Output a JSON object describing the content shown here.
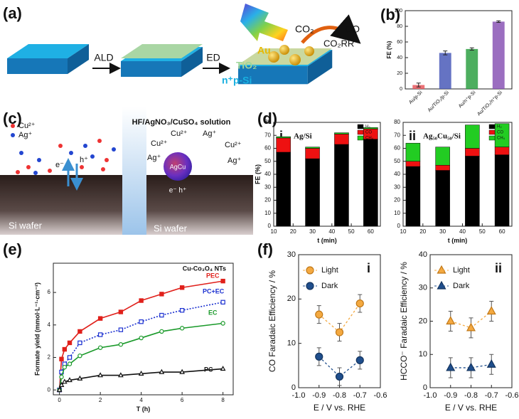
{
  "panel_labels": [
    "(a)",
    "(b)",
    "(c)",
    "(d)",
    "(e)",
    "(f)"
  ],
  "schematic_a": {
    "steps": [
      "ALD",
      "ED"
    ],
    "layers": [
      "Au",
      "TiO₂",
      "n⁺p-Si"
    ],
    "reaction": [
      "CO₂",
      "CO₂RR",
      "CO"
    ]
  },
  "schematic_c": {
    "title": "HF/AgNO₃/CuSO₄ solution",
    "legend": [
      "Cu²⁺",
      "Ag⁺"
    ],
    "carriers_left": [
      "e⁻",
      "h⁺"
    ],
    "particle": "AgCu",
    "carriers_right": "e⁻ h⁺",
    "ion_labels": [
      "Cu²⁺",
      "Cu²⁺",
      "Ag⁺",
      "Cu²⁺",
      "Ag⁺",
      "Ag⁺"
    ],
    "substrate": [
      "Si wafer",
      "Si wafer"
    ]
  },
  "chart_data": [
    {
      "type": "bar",
      "ylabel": "FE (%)",
      "categories": [
        "Au/p-Si",
        "Au/TiO₂/p-Si",
        "Au/n⁺p-Si",
        "Au/TiO₂/n⁺p-Si"
      ],
      "values": [
        5,
        46,
        51,
        86
      ],
      "errors": [
        2.5,
        2.5,
        1.5,
        1
      ],
      "colors": [
        "#e8585e",
        "#4a5bb8",
        "#2ea043",
        "#8a55b5"
      ],
      "ylim": [
        0,
        100
      ],
      "yticks": [
        0,
        20,
        40,
        60,
        80,
        100
      ]
    },
    {
      "type": "stacked_bar",
      "panel": "i",
      "title": "Ag/Si",
      "xlabel": "t (min)",
      "ylabel": "FE (%)",
      "x": [
        15,
        30,
        45,
        60
      ],
      "xlim": [
        10,
        65
      ],
      "xticks": [
        10,
        20,
        30,
        40,
        50,
        60
      ],
      "ylim": [
        0,
        80
      ],
      "yticks": [
        0,
        10,
        20,
        30,
        40,
        50,
        60,
        70,
        80
      ],
      "series": [
        {
          "name": "H₂",
          "color": "#000000",
          "values": [
            57,
            52,
            63,
            67
          ]
        },
        {
          "name": "CO",
          "color": "#ee1111",
          "values": [
            11,
            8,
            8,
            8
          ]
        },
        {
          "name": "CH₄",
          "color": "#22cc22",
          "values": [
            1,
            1,
            1,
            1
          ]
        }
      ]
    },
    {
      "type": "stacked_bar",
      "panel": "ii",
      "title": "Ag₅₀Cu₅₀/Si",
      "xlabel": "t (min)",
      "x": [
        15,
        30,
        45,
        60
      ],
      "xlim": [
        10,
        65
      ],
      "xticks": [
        10,
        20,
        30,
        40,
        50,
        60
      ],
      "ylim": [
        0,
        80
      ],
      "yticks": [
        0,
        10,
        20,
        30,
        40,
        50,
        60,
        70,
        80
      ],
      "series": [
        {
          "name": "H₂",
          "color": "#000000",
          "values": [
            46,
            43,
            54,
            55
          ]
        },
        {
          "name": "CO",
          "color": "#ee1111",
          "values": [
            4,
            4,
            6,
            6
          ]
        },
        {
          "name": "CH₄",
          "color": "#22cc22",
          "values": [
            14,
            14,
            18,
            18
          ]
        }
      ]
    },
    {
      "type": "line",
      "annotation": "Cu-Co₃O₄ NTs",
      "xlabel": "T (h)",
      "ylabel": "Formate yield (mmol·L⁻¹·cm⁻²)",
      "x": [
        0,
        0.1,
        0.25,
        0.5,
        1,
        2,
        3,
        4,
        5,
        6,
        8
      ],
      "xlim": [
        -0.3,
        8.5
      ],
      "xticks": [
        0,
        2,
        4,
        6,
        8
      ],
      "ylim": [
        -0.3,
        7.8
      ],
      "yticks": [
        0,
        2,
        4,
        6
      ],
      "series": [
        {
          "name": "PEC",
          "color": "#e0201b",
          "marker": "square",
          "filled": true,
          "dash": false,
          "values": [
            0,
            1.9,
            2.5,
            2.9,
            3.6,
            4.4,
            4.8,
            5.5,
            5.9,
            6.3,
            6.7
          ]
        },
        {
          "name": "PC+EC",
          "color": "#1a2fd0",
          "marker": "square",
          "filled": false,
          "dash": true,
          "values": [
            0,
            1.1,
            1.6,
            2.0,
            2.9,
            3.4,
            3.7,
            4.2,
            4.6,
            4.9,
            5.4
          ]
        },
        {
          "name": "EC",
          "color": "#1a9a2a",
          "marker": "circle",
          "filled": false,
          "dash": false,
          "values": [
            0,
            0.8,
            1.4,
            1.6,
            2.1,
            2.6,
            2.8,
            3.2,
            3.6,
            3.8,
            4.1
          ]
        },
        {
          "name": "PC",
          "color": "#111111",
          "marker": "triangle",
          "filled": false,
          "dash": false,
          "values": [
            0,
            0.3,
            0.5,
            0.6,
            0.7,
            0.9,
            0.9,
            1.0,
            1.1,
            1.1,
            1.3
          ]
        }
      ]
    },
    {
      "type": "scatter",
      "panel": "i",
      "xlabel": "E / V vs. RHE",
      "ylabel": "CO Faradaic Efficiency / %",
      "x": [
        -0.9,
        -0.8,
        -0.7
      ],
      "xlim": [
        -1.0,
        -0.6
      ],
      "xticks": [
        {
          "value": -1,
          "label": "-1.0"
        },
        -0.9,
        -0.8,
        -0.7,
        -0.6
      ],
      "ylim": [
        0,
        30
      ],
      "yticks": [
        0,
        10,
        20,
        30
      ],
      "series": [
        {
          "name": "Light",
          "color": "#f4a940",
          "edge": "#c07818",
          "marker": "circle",
          "values": [
            16.5,
            12.5,
            19
          ],
          "errors": [
            2,
            2,
            2
          ]
        },
        {
          "name": "Dark",
          "color": "#1f4e8c",
          "edge": "#14345e",
          "marker": "circle",
          "values": [
            7,
            2.5,
            6.2
          ],
          "errors": [
            2,
            2,
            2
          ]
        }
      ]
    },
    {
      "type": "scatter",
      "panel": "ii",
      "xlabel": "E / V vs. RHE",
      "ylabel": "HCCO⁻ Faradaic Efficiency / %",
      "x": [
        -0.9,
        -0.8,
        -0.7
      ],
      "xlim": [
        -1.0,
        -0.6
      ],
      "xticks": [
        {
          "value": -1,
          "label": "-1.0"
        },
        -0.9,
        -0.8,
        -0.7,
        -0.6
      ],
      "ylim": [
        0,
        40
      ],
      "yticks": [
        0,
        10,
        20,
        30,
        40
      ],
      "series": [
        {
          "name": "Light",
          "color": "#f4a940",
          "edge": "#c07818",
          "marker": "triangle",
          "values": [
            20,
            18,
            23
          ],
          "errors": [
            3,
            3,
            3
          ]
        },
        {
          "name": "Dark",
          "color": "#1f4e8c",
          "edge": "#14345e",
          "marker": "triangle",
          "values": [
            6,
            6,
            7
          ],
          "errors": [
            3,
            3,
            3
          ]
        }
      ]
    }
  ]
}
